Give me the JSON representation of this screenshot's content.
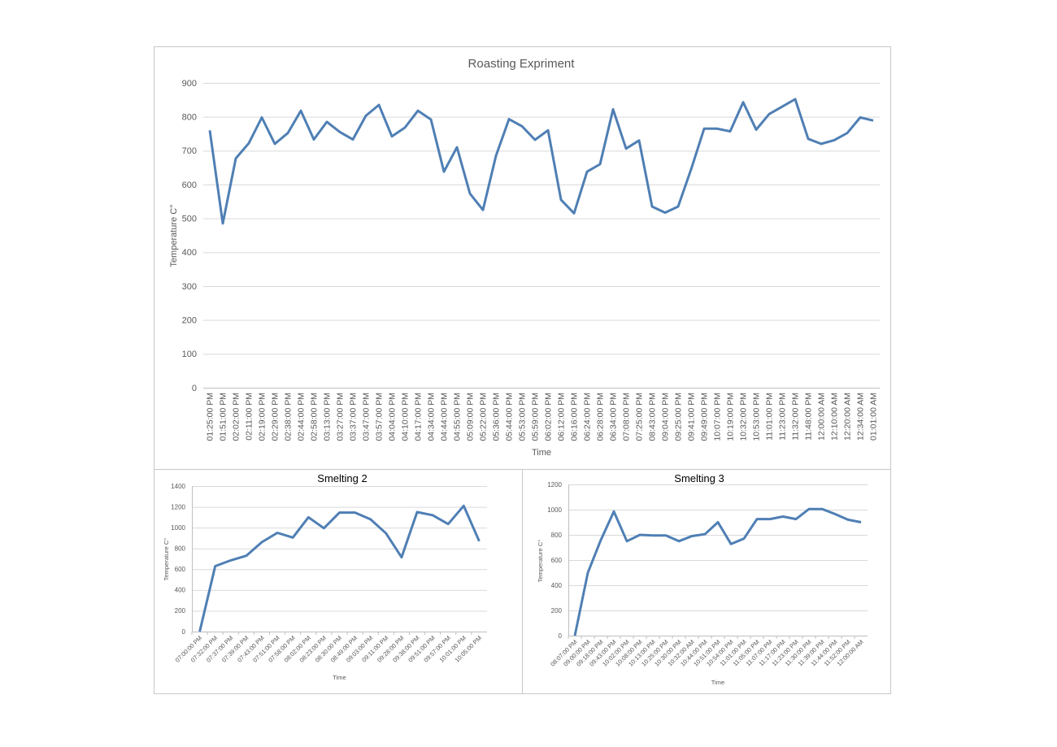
{
  "chart_data": [
    {
      "type": "line",
      "title": "Roasting Expriment",
      "xlabel": "Time",
      "ylabel": "Temperature C°",
      "ylim": [
        0,
        900
      ],
      "yticks": [
        0,
        100,
        200,
        300,
        400,
        500,
        600,
        700,
        800,
        900
      ],
      "grid": true,
      "color": "#4f7fb4",
      "categories": [
        "01:25:00 PM",
        "01:51:00 PM",
        "02:02:00 PM",
        "02:11:00 PM",
        "02:19:00 PM",
        "02:29:00 PM",
        "02:38:00 PM",
        "02:44:00 PM",
        "02:58:00 PM",
        "03:13:00 PM",
        "03:27:00 PM",
        "03:37:00 PM",
        "03:47:00 PM",
        "03:57:00 PM",
        "04:04:00 PM",
        "04:10:00 PM",
        "04:17:00 PM",
        "04:34:00 PM",
        "04:44:00 PM",
        "04:55:00 PM",
        "05:09:00 PM",
        "05:22:00 PM",
        "05:36:00 PM",
        "05:44:00 PM",
        "05:53:00 PM",
        "05:59:00 PM",
        "06:02:00 PM",
        "06:12:00 PM",
        "06:16:00 PM",
        "06:24:00 PM",
        "06:28:00 PM",
        "06:34:00 PM",
        "07:08:00 PM",
        "07:25:00 PM",
        "08:43:00 PM",
        "09:04:00 PM",
        "09:25:00 PM",
        "09:41:00 PM",
        "09:49:00 PM",
        "10:07:00 PM",
        "10:19:00 PM",
        "10:32:00 PM",
        "10:53:00 PM",
        "11:01:00 PM",
        "11:23:00 PM",
        "11:32:00 PM",
        "11:48:00 PM",
        "12:00:00 AM",
        "12:10:00 AM",
        "12:20:00 AM",
        "12:34:00 AM",
        "01:01:00 AM"
      ],
      "values": [
        760,
        485,
        677,
        722,
        798,
        720,
        752,
        818,
        733,
        785,
        755,
        733,
        803,
        835,
        742,
        768,
        818,
        792,
        638,
        710,
        573,
        525,
        685,
        793,
        772,
        732,
        760,
        555,
        515,
        638,
        660,
        822,
        706,
        730,
        535,
        517,
        535,
        645,
        765,
        765,
        757,
        843,
        762,
        808,
        830,
        852,
        735,
        720,
        731,
        752,
        798,
        789
      ]
    },
    {
      "type": "line",
      "title": "Smelting 2",
      "xlabel": "Time",
      "ylabel": "Temperature C°",
      "ylim": [
        0,
        1400
      ],
      "yticks": [
        0,
        200,
        400,
        600,
        800,
        1000,
        1200,
        1400
      ],
      "grid": true,
      "color": "#4f7fb4",
      "categories": [
        "07:00:00 PM",
        "07:32:00 PM",
        "07:37:00 PM",
        "07:39:00 PM",
        "07:43:00 PM",
        "07:51:00 PM",
        "07:58:00 PM",
        "08:02:00 PM",
        "08:23:00 PM",
        "08:30:00 PM",
        "08:49:00 PM",
        "09:03:00 PM",
        "09:11:00 PM",
        "09:28:00 PM",
        "09:38:00 PM",
        "09:51:00 PM",
        "09:57:00 PM",
        "10:01:00 PM",
        "10:05:00 PM"
      ],
      "values": [
        0,
        630,
        685,
        730,
        860,
        950,
        905,
        1100,
        995,
        1145,
        1145,
        1080,
        945,
        715,
        1150,
        1120,
        1035,
        1210,
        870
      ]
    },
    {
      "type": "line",
      "title": "Smelting 3",
      "xlabel": "Time",
      "ylabel": "Temperature C°",
      "ylim": [
        0,
        1200
      ],
      "yticks": [
        0,
        200,
        400,
        600,
        800,
        1000,
        1200
      ],
      "grid": true,
      "color": "#4f7fb4",
      "categories": [
        "08:07:00 PM",
        "09:00:00 PM",
        "09:18:00 PM",
        "09:43:00 PM",
        "10:02:00 PM",
        "10:08:00 PM",
        "10:13:00 PM",
        "10:25:00 PM",
        "10:30:00 PM",
        "10:32:00 AM",
        "10:44:00 PM",
        "10:51:00 PM",
        "10:54:00 PM",
        "11:01:00 PM",
        "11:05:00 PM",
        "11:07:00 PM",
        "11:17:00 PM",
        "11:23:00 PM",
        "11:30:00 PM",
        "11:39:00 PM",
        "11:44:00 PM",
        "11:52:00 PM",
        "12:00:00 AM"
      ],
      "values": [
        0,
        500,
        760,
        985,
        750,
        800,
        795,
        795,
        750,
        790,
        805,
        900,
        728,
        770,
        925,
        925,
        945,
        925,
        1005,
        1005,
        965,
        920,
        900
      ]
    }
  ]
}
